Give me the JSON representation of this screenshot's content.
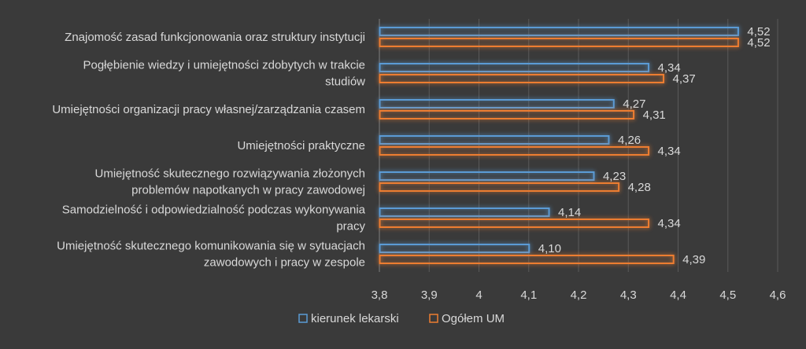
{
  "chart_data": {
    "type": "bar",
    "orientation": "horizontal",
    "categories": [
      [
        "Znajomość zasad funkcjonowania oraz struktury instytucji"
      ],
      [
        "Pogłębienie wiedzy i umiejętności zdobytych w trakcie",
        "studiów"
      ],
      [
        "Umiejętności organizacji pracy własnej/zarządzania czasem"
      ],
      [
        "Umiejętności praktyczne"
      ],
      [
        "Umiejętność skutecznego rozwiązywania złożonych",
        "problemów napotkanych w pracy zawodowej"
      ],
      [
        "Samodzielność i odpowiedzialność podczas wykonywania",
        "pracy"
      ],
      [
        "Umiejętność skutecznego komunikowania się w sytuacjach",
        "zawodowych i pracy w zespole"
      ]
    ],
    "series": [
      {
        "name": "kierunek lekarski",
        "color": "#5b9bd5",
        "values": [
          4.52,
          4.34,
          4.27,
          4.26,
          4.23,
          4.14,
          4.1
        ],
        "labels": [
          "4,52",
          "4,34",
          "4,27",
          "4,26",
          "4,23",
          "4,14",
          "4,10"
        ]
      },
      {
        "name": "Ogółem UM",
        "color": "#ed7d31",
        "values": [
          4.52,
          4.37,
          4.31,
          4.34,
          4.28,
          4.34,
          4.39
        ],
        "labels": [
          "4,52",
          "4,37",
          "4,31",
          "4,34",
          "4,28",
          "4,34",
          "4,39"
        ]
      }
    ],
    "xlim": [
      3.8,
      4.6
    ],
    "ticks": [
      3.8,
      3.9,
      4.0,
      4.1,
      4.2,
      4.3,
      4.4,
      4.5,
      4.6
    ],
    "tick_labels": [
      "3,8",
      "3,9",
      "4",
      "4,1",
      "4,2",
      "4,3",
      "4,4",
      "4,5",
      "4,6"
    ],
    "grid": true,
    "legend_position": "bottom",
    "background": "#3a3a3a",
    "gridline_color": "#595959"
  }
}
